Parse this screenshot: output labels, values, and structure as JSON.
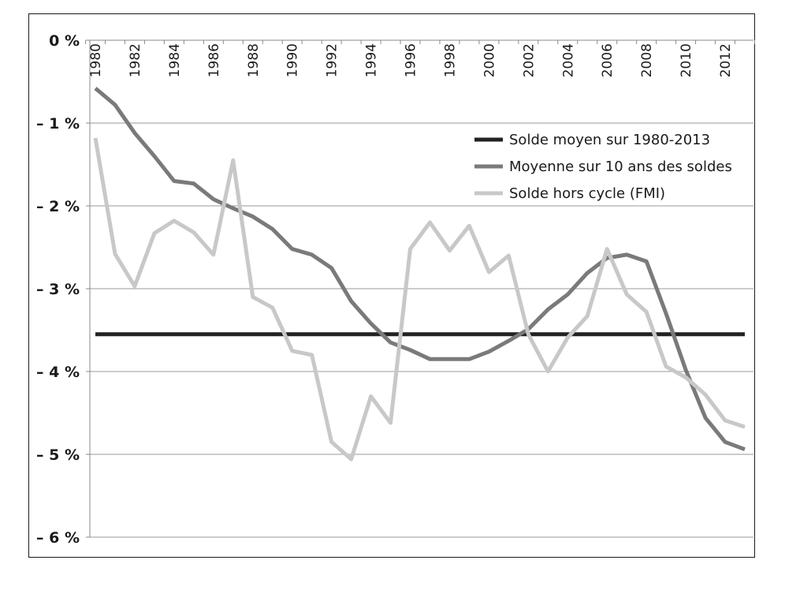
{
  "chart_data": {
    "type": "line",
    "title": "",
    "xlabel": "",
    "ylabel": "",
    "ylim": [
      -6,
      0
    ],
    "xlim": [
      1980,
      2013
    ],
    "y_ticks": [
      0,
      -1,
      -2,
      -3,
      -4,
      -5,
      -6
    ],
    "y_tick_labels": [
      "0 %",
      "– 1 %",
      "– 2 %",
      "– 3 %",
      "– 4 %",
      "– 5 %",
      "– 6 %"
    ],
    "x_tick_labels": [
      "1980",
      "1982",
      "1984",
      "1986",
      "1988",
      "1990",
      "1992",
      "1994",
      "1996",
      "1998",
      "2000",
      "2002",
      "2004",
      "2006",
      "2008",
      "2010",
      "2012"
    ],
    "grid": true,
    "legend_position": "right",
    "series": [
      {
        "name": "Solde moyen sur 1980-2013",
        "color": "#222222",
        "x": [
          1980,
          2013
        ],
        "values": [
          -3.55,
          -3.55
        ]
      },
      {
        "name": "Moyenne sur 10 ans des soldes",
        "color": "#7a7a7a",
        "x": [
          1980,
          1981,
          1982,
          1983,
          1984,
          1985,
          1986,
          1987,
          1988,
          1989,
          1990,
          1991,
          1992,
          1993,
          1994,
          1995,
          1996,
          1997,
          1998,
          1999,
          2000,
          2001,
          2002,
          2003,
          2004,
          2005,
          2006,
          2007,
          2008,
          2009,
          2010,
          2011,
          2012,
          2013
        ],
        "values": [
          -0.58,
          -0.78,
          -1.12,
          -1.4,
          -1.7,
          -1.73,
          -1.92,
          -2.03,
          -2.13,
          -2.28,
          -2.52,
          -2.59,
          -2.75,
          -3.15,
          -3.42,
          -3.65,
          -3.74,
          -3.85,
          -3.85,
          -3.85,
          -3.76,
          -3.63,
          -3.49,
          -3.25,
          -3.07,
          -2.81,
          -2.63,
          -2.59,
          -2.67,
          -3.3,
          -3.98,
          -4.56,
          -4.85,
          -4.94
        ]
      },
      {
        "name": "Solde hors cycle (FMI)",
        "color": "#c8c8c8",
        "x": [
          1980,
          1981,
          1982,
          1983,
          1984,
          1985,
          1986,
          1987,
          1988,
          1989,
          1990,
          1991,
          1992,
          1993,
          1994,
          1995,
          1996,
          1997,
          1998,
          1999,
          2000,
          2001,
          2002,
          2003,
          2004,
          2005,
          2006,
          2007,
          2008,
          2009,
          2010,
          2011,
          2012,
          2013
        ],
        "values": [
          -1.18,
          -2.58,
          -2.97,
          -2.33,
          -2.18,
          -2.32,
          -2.59,
          -1.45,
          -3.1,
          -3.23,
          -3.75,
          -3.8,
          -4.85,
          -5.06,
          -4.3,
          -4.62,
          -2.52,
          -2.2,
          -2.54,
          -2.24,
          -2.8,
          -2.6,
          -3.55,
          -4.0,
          -3.59,
          -3.33,
          -2.52,
          -3.07,
          -3.28,
          -3.94,
          -4.07,
          -4.28,
          -4.59,
          -4.67
        ]
      }
    ]
  }
}
